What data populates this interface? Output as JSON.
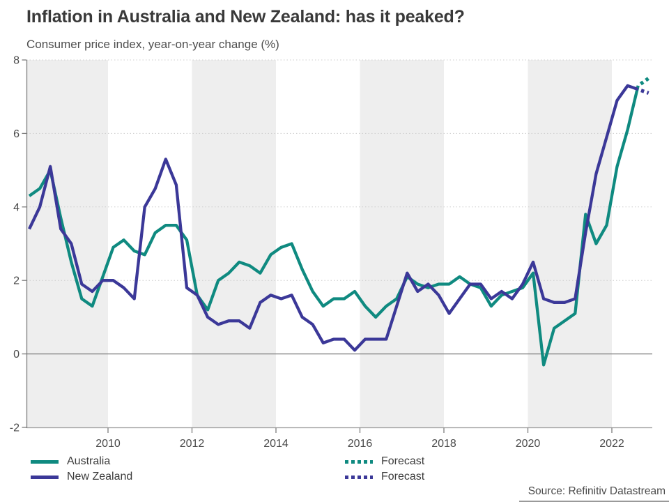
{
  "header": {
    "title": "Inflation in Australia and New Zealand: has it peaked?",
    "subtitle": "Consumer price index, year-on-year change (%)"
  },
  "footer": {
    "source": "Source: Refinitiv Datastream"
  },
  "legend": {
    "items": [
      {
        "label": "Australia",
        "style": "solid",
        "series_index": 0
      },
      {
        "label": "Forecast",
        "style": "dotted",
        "series_index": 0
      },
      {
        "label": "New Zealand",
        "style": "solid",
        "series_index": 1
      },
      {
        "label": "Forecast",
        "style": "dotted",
        "series_index": 1
      }
    ]
  },
  "chart_data": {
    "type": "line",
    "title": "Inflation in Australia and New Zealand: has it peaked?",
    "subtitle": "Consumer price index, year-on-year change (%)",
    "xlabel": "",
    "ylabel": "Consumer price index, year-on-year change (%)",
    "x_start_year": 2008,
    "points_per_year": 4,
    "x_first_period": "2008 Q1",
    "x_last_period": "2022 Q3",
    "forecast_period": "2022 Q4",
    "ylim": [
      -2,
      8
    ],
    "y_ticks": [
      8,
      6,
      4,
      2,
      0,
      -2
    ],
    "x_ticks": [
      2010,
      2012,
      2014,
      2016,
      2018,
      2020,
      2022
    ],
    "y_gridlines_dotted": [
      2,
      4,
      6,
      8
    ],
    "zero_line": 0,
    "grid_on": true,
    "legend_position": "bottom",
    "shaded_year_bands": [
      [
        2008,
        2010
      ],
      [
        2012,
        2014
      ],
      [
        2016,
        2018
      ],
      [
        2020,
        2022
      ]
    ],
    "band_color": "#eeeeee",
    "axis_color": "#7d7d7d",
    "grid_color": "#cccccc",
    "series": [
      {
        "name": "Australia",
        "color": "#0f8a80",
        "values": [
          4.3,
          4.5,
          5.0,
          3.7,
          2.5,
          1.5,
          1.3,
          2.1,
          2.9,
          3.1,
          2.8,
          2.7,
          3.3,
          3.5,
          3.5,
          3.1,
          1.6,
          1.2,
          2.0,
          2.2,
          2.5,
          2.4,
          2.2,
          2.7,
          2.9,
          3.0,
          2.3,
          1.7,
          1.3,
          1.5,
          1.5,
          1.7,
          1.3,
          1.0,
          1.3,
          1.5,
          2.1,
          1.9,
          1.8,
          1.9,
          1.9,
          2.1,
          1.9,
          1.8,
          1.3,
          1.6,
          1.7,
          1.8,
          2.2,
          -0.3,
          0.7,
          0.9,
          1.1,
          3.8,
          3.0,
          3.5,
          5.1,
          6.1,
          7.3
        ],
        "forecast_values": [
          7.5
        ]
      },
      {
        "name": "New Zealand",
        "color": "#3b3898",
        "values": [
          3.4,
          4.0,
          5.1,
          3.4,
          3.0,
          1.9,
          1.7,
          2.0,
          2.0,
          1.8,
          1.5,
          4.0,
          4.5,
          5.3,
          4.6,
          1.8,
          1.6,
          1.0,
          0.8,
          0.9,
          0.9,
          0.7,
          1.4,
          1.6,
          1.5,
          1.6,
          1.0,
          0.8,
          0.3,
          0.4,
          0.4,
          0.1,
          0.4,
          0.4,
          0.4,
          1.3,
          2.2,
          1.7,
          1.9,
          1.6,
          1.1,
          1.5,
          1.9,
          1.9,
          1.5,
          1.7,
          1.5,
          1.9,
          2.5,
          1.5,
          1.4,
          1.4,
          1.5,
          3.3,
          4.9,
          5.9,
          6.9,
          7.3,
          7.2
        ],
        "forecast_values": [
          7.1
        ]
      }
    ]
  }
}
